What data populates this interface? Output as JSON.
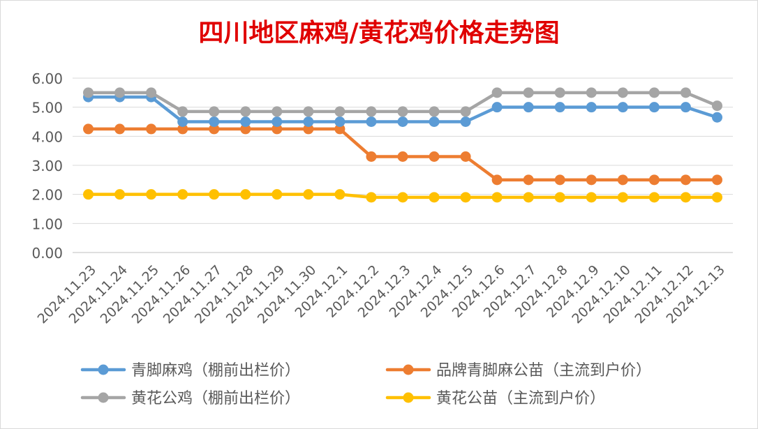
{
  "chart_data": {
    "type": "line",
    "title": "四川地区麻鸡/黄花鸡价格走势图",
    "categories": [
      "2024.11.23",
      "2024.11.24",
      "2024.11.25",
      "2024.11.26",
      "2024.11.27",
      "2024.11.28",
      "2024.11.29",
      "2024.11.30",
      "2024.12.1",
      "2024.12.2",
      "2024.12.3",
      "2024.12.4",
      "2024.12.5",
      "2024.12.6",
      "2024.12.7",
      "2024.12.8",
      "2024.12.9",
      "2024.12.10",
      "2024.12.11",
      "2024.12.12",
      "2024.12.13"
    ],
    "y_ticks": [
      "0.00",
      "1.00",
      "2.00",
      "3.00",
      "4.00",
      "5.00",
      "6.00"
    ],
    "ylim": [
      0,
      6
    ],
    "grid": true,
    "legend_position": "bottom",
    "series": [
      {
        "name": "青脚麻鸡（棚前出栏价）",
        "color": "#5B9BD5",
        "values": [
          5.35,
          5.35,
          5.35,
          4.5,
          4.5,
          4.5,
          4.5,
          4.5,
          4.5,
          4.5,
          4.5,
          4.5,
          4.5,
          5.0,
          5.0,
          5.0,
          5.0,
          5.0,
          5.0,
          5.0,
          4.65
        ]
      },
      {
        "name": "品牌青脚麻公苗（主流到户价）",
        "color": "#ED7D31",
        "values": [
          4.25,
          4.25,
          4.25,
          4.25,
          4.25,
          4.25,
          4.25,
          4.25,
          4.25,
          3.3,
          3.3,
          3.3,
          3.3,
          2.5,
          2.5,
          2.5,
          2.5,
          2.5,
          2.5,
          2.5,
          2.5
        ]
      },
      {
        "name": "黄花公鸡（棚前出栏价）",
        "color": "#A5A5A5",
        "values": [
          5.5,
          5.5,
          5.5,
          4.85,
          4.85,
          4.85,
          4.85,
          4.85,
          4.85,
          4.85,
          4.85,
          4.85,
          4.85,
          5.5,
          5.5,
          5.5,
          5.5,
          5.5,
          5.5,
          5.5,
          5.05
        ]
      },
      {
        "name": "黄花公苗（主流到户价）",
        "color": "#FFC000",
        "values": [
          2.0,
          2.0,
          2.0,
          2.0,
          2.0,
          2.0,
          2.0,
          2.0,
          2.0,
          1.9,
          1.9,
          1.9,
          1.9,
          1.9,
          1.9,
          1.9,
          1.9,
          1.9,
          1.9,
          1.9,
          1.9
        ]
      }
    ],
    "draw_order": [
      1,
      3,
      0,
      2
    ],
    "title_color": "#E00000",
    "grid_color": "#D9D9D9",
    "axis_color": "#BFBFBF",
    "tick_label_color": "#595959"
  }
}
